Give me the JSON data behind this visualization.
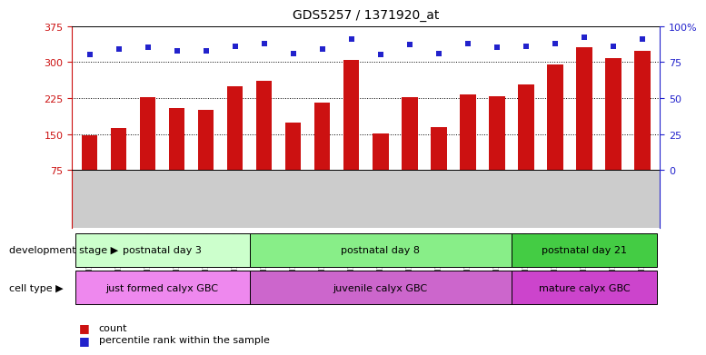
{
  "title": "GDS5257 / 1371920_at",
  "samples": [
    "GSM1202424",
    "GSM1202425",
    "GSM1202426",
    "GSM1202427",
    "GSM1202428",
    "GSM1202429",
    "GSM1202430",
    "GSM1202431",
    "GSM1202432",
    "GSM1202433",
    "GSM1202434",
    "GSM1202435",
    "GSM1202436",
    "GSM1202437",
    "GSM1202438",
    "GSM1202439",
    "GSM1202440",
    "GSM1202441",
    "GSM1202442",
    "GSM1202443"
  ],
  "bar_values": [
    148,
    162,
    226,
    205,
    200,
    250,
    260,
    173,
    216,
    305,
    151,
    226,
    165,
    233,
    228,
    254,
    295,
    330,
    308,
    323
  ],
  "pct_values": [
    80,
    84,
    85,
    83,
    83,
    86,
    88,
    81,
    84,
    91,
    80,
    87,
    81,
    88,
    85,
    86,
    88,
    92,
    86,
    91
  ],
  "bar_color": "#cc1111",
  "pct_color": "#2222cc",
  "ylim_left": [
    75,
    375
  ],
  "ylim_right": [
    0,
    100
  ],
  "yticks_left": [
    75,
    150,
    225,
    300,
    375
  ],
  "yticks_right": [
    0,
    25,
    50,
    75,
    100
  ],
  "ytick_labels_right": [
    "0",
    "25",
    "50",
    "75",
    "100%"
  ],
  "gridlines": [
    150,
    225,
    300
  ],
  "groups": [
    {
      "label": "postnatal day 3",
      "start": 0,
      "end": 6,
      "color": "#ccffcc"
    },
    {
      "label": "postnatal day 8",
      "start": 6,
      "end": 15,
      "color": "#88ee88"
    },
    {
      "label": "postnatal day 21",
      "start": 15,
      "end": 20,
      "color": "#44cc44"
    }
  ],
  "cell_types": [
    {
      "label": "just formed calyx GBC",
      "start": 0,
      "end": 6,
      "color": "#ee88ee"
    },
    {
      "label": "juvenile calyx GBC",
      "start": 6,
      "end": 15,
      "color": "#cc66cc"
    },
    {
      "label": "mature calyx GBC",
      "start": 15,
      "end": 20,
      "color": "#cc44cc"
    }
  ],
  "dev_stage_label": "development stage",
  "cell_type_label": "cell type",
  "legend_count": "count",
  "legend_pct": "percentile rank within the sample",
  "bar_width": 0.55,
  "xticklabel_bg": "#cccccc",
  "fig_bg": "#ffffff"
}
